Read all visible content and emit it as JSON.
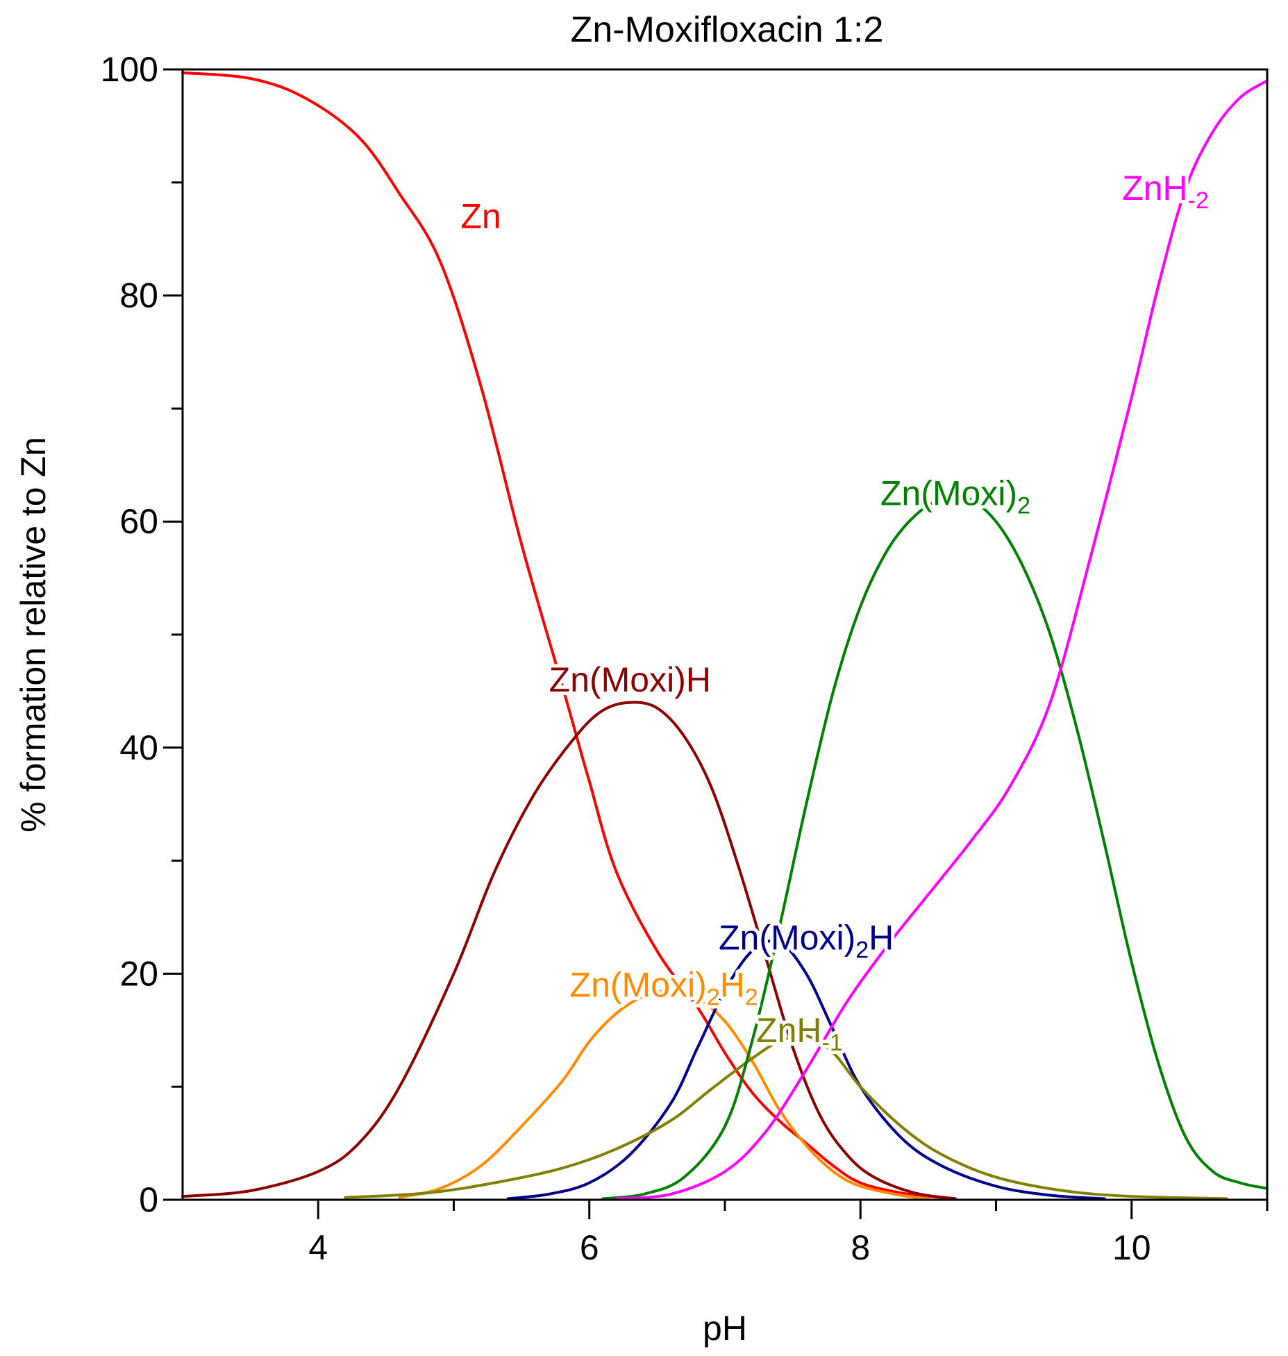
{
  "chart_data": {
    "type": "line",
    "title": "Zn-Moxifloxacin 1:2",
    "xlabel": "pH",
    "ylabel": "% formation relative to Zn",
    "xlim": [
      3,
      11
    ],
    "ylim": [
      0,
      100
    ],
    "x_ticks": [
      4,
      6,
      8,
      10
    ],
    "x_tick_labels": [
      "4",
      "6",
      "8",
      "10"
    ],
    "y_ticks": [
      0,
      20,
      40,
      60,
      80,
      100
    ],
    "y_tick_labels": [
      "0",
      "20",
      "40",
      "60",
      "80",
      "100"
    ],
    "grid": false,
    "series": [
      {
        "name": "Zn",
        "label_parts": [
          {
            "t": "Zn"
          }
        ],
        "color": "#ff0000",
        "label_pos": [
          5.2,
          87
        ],
        "x": [
          3.0,
          3.5,
          3.9,
          4.3,
          4.6,
          4.9,
          5.2,
          5.5,
          5.8,
          6.0,
          6.2,
          6.5,
          6.8,
          7.0,
          7.2,
          7.4,
          7.6,
          7.8,
          8.0,
          8.3,
          8.6
        ],
        "y": [
          99.7,
          99.2,
          97.5,
          94.0,
          89.0,
          83.0,
          72.0,
          58.0,
          45.5,
          37.0,
          29.0,
          22.0,
          17.0,
          13.0,
          9.5,
          7.0,
          5.0,
          3.0,
          1.5,
          0.6,
          0.2
        ]
      },
      {
        "name": "Zn(Moxi)H",
        "label_parts": [
          {
            "t": "Zn(Moxi)H"
          }
        ],
        "color": "#8b0000",
        "label_pos": [
          6.3,
          46
        ],
        "x": [
          3.0,
          3.5,
          4.0,
          4.3,
          4.6,
          5.0,
          5.3,
          5.6,
          5.9,
          6.1,
          6.3,
          6.5,
          6.7,
          6.9,
          7.1,
          7.3,
          7.5,
          7.7,
          7.9,
          8.1,
          8.4,
          8.7
        ],
        "y": [
          0.3,
          0.8,
          2.5,
          5.0,
          10.0,
          20.0,
          29.0,
          36.0,
          41.0,
          43.3,
          44.0,
          43.5,
          41.0,
          36.5,
          29.5,
          21.5,
          13.5,
          7.5,
          4.0,
          2.0,
          0.6,
          0.1
        ]
      },
      {
        "name": "Zn(Moxi)2H2",
        "label_parts": [
          {
            "t": "Zn(Moxi)"
          },
          {
            "t": "2",
            "sub": true
          },
          {
            "t": "H"
          },
          {
            "t": "2",
            "sub": true
          }
        ],
        "color": "#ff8c00",
        "label_pos": [
          6.55,
          19
        ],
        "x": [
          4.6,
          4.9,
          5.2,
          5.5,
          5.8,
          6.0,
          6.2,
          6.4,
          6.6,
          6.8,
          7.0,
          7.2,
          7.4,
          7.6,
          7.8,
          8.0,
          8.3,
          8.5
        ],
        "y": [
          0.2,
          1.0,
          3.0,
          6.5,
          10.5,
          14.0,
          16.5,
          18.0,
          18.5,
          17.8,
          15.8,
          12.3,
          8.0,
          4.8,
          2.5,
          1.2,
          0.4,
          0.1
        ]
      },
      {
        "name": "Zn(Moxi)2H",
        "label_parts": [
          {
            "t": "Zn(Moxi)"
          },
          {
            "t": "2",
            "sub": true
          },
          {
            "t": "H"
          }
        ],
        "color": "#00008b",
        "label_pos": [
          7.6,
          23.2
        ],
        "x": [
          5.4,
          5.7,
          6.0,
          6.3,
          6.6,
          6.8,
          7.0,
          7.2,
          7.4,
          7.6,
          7.8,
          8.0,
          8.3,
          8.6,
          9.0,
          9.4,
          9.8
        ],
        "y": [
          0.1,
          0.5,
          1.5,
          4.0,
          8.5,
          13.5,
          18.5,
          22.0,
          22.8,
          20.0,
          15.0,
          10.0,
          5.5,
          3.0,
          1.2,
          0.4,
          0.1
        ]
      },
      {
        "name": "ZnH-1",
        "label_parts": [
          {
            "t": "ZnH"
          },
          {
            "t": "-1",
            "sub": true
          }
        ],
        "color": "#808000",
        "label_pos": [
          7.55,
          15
        ],
        "x": [
          4.2,
          4.8,
          5.3,
          5.8,
          6.2,
          6.6,
          6.9,
          7.2,
          7.4,
          7.6,
          7.8,
          8.0,
          8.3,
          8.6,
          9.0,
          9.5,
          10.0,
          10.7
        ],
        "y": [
          0.2,
          0.6,
          1.5,
          2.8,
          4.5,
          7.0,
          9.8,
          12.5,
          14.0,
          14.5,
          13.0,
          10.0,
          6.5,
          4.0,
          2.0,
          0.8,
          0.3,
          0.1
        ]
      },
      {
        "name": "Zn(Moxi)2",
        "label_parts": [
          {
            "t": "Zn(Moxi)"
          },
          {
            "t": "2",
            "sub": true
          }
        ],
        "color": "#008000",
        "label_pos": [
          8.7,
          62.5
        ],
        "x": [
          6.1,
          6.4,
          6.7,
          7.0,
          7.2,
          7.4,
          7.6,
          7.8,
          8.0,
          8.2,
          8.4,
          8.6,
          8.8,
          9.0,
          9.2,
          9.4,
          9.6,
          9.8,
          10.0,
          10.2,
          10.4,
          10.6,
          10.8,
          11.0
        ],
        "y": [
          0.1,
          0.5,
          2.0,
          6.5,
          14.0,
          24.0,
          35.0,
          45.0,
          52.5,
          57.5,
          60.5,
          62.0,
          62.0,
          60.0,
          56.0,
          50.0,
          41.5,
          31.5,
          21.0,
          12.0,
          5.5,
          2.5,
          1.5,
          1.0
        ]
      },
      {
        "name": "ZnH-2",
        "label_parts": [
          {
            "t": "ZnH"
          },
          {
            "t": "-2",
            "sub": true
          }
        ],
        "color": "#ff00ff",
        "label_pos": [
          10.25,
          89.5
        ],
        "x": [
          6.2,
          6.6,
          7.0,
          7.3,
          7.6,
          7.9,
          8.2,
          8.5,
          8.8,
          9.1,
          9.4,
          9.7,
          10.0,
          10.2,
          10.4,
          10.6,
          10.8,
          11.0
        ],
        "y": [
          0.1,
          0.5,
          2.5,
          6.0,
          11.5,
          17.5,
          22.5,
          27.0,
          31.5,
          36.5,
          44.0,
          57.0,
          71.0,
          81.0,
          89.5,
          94.5,
          97.5,
          99.0
        ]
      }
    ]
  }
}
